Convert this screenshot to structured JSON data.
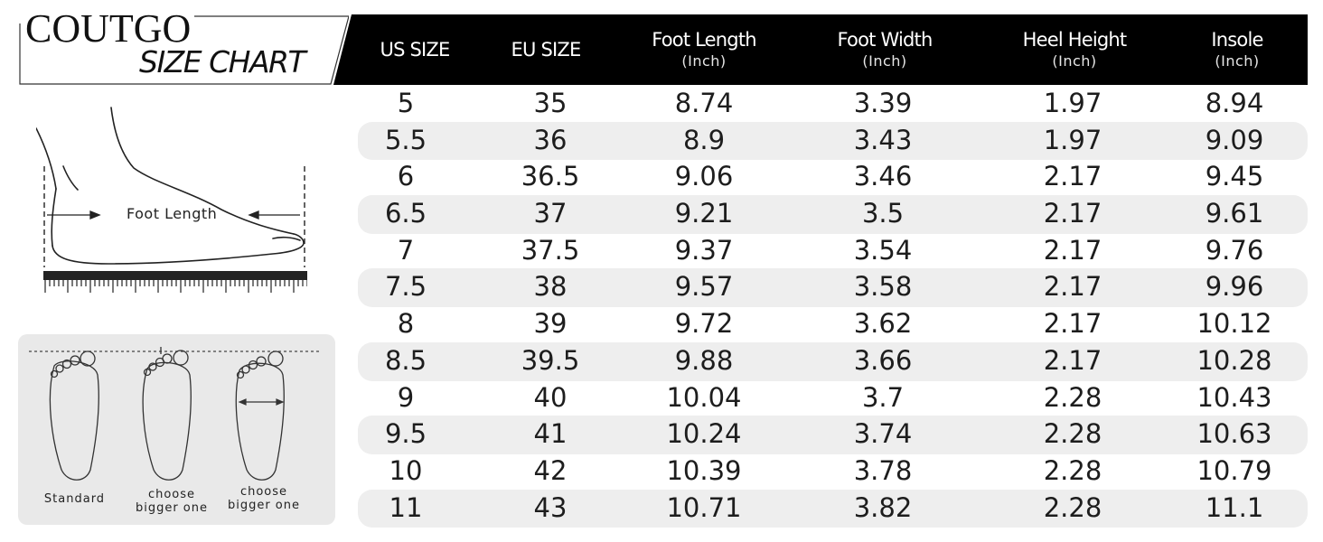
{
  "brand": {
    "name": "COUTGO",
    "subtitle": "SIZE CHART"
  },
  "columns": [
    {
      "label": "US SIZE",
      "unit": ""
    },
    {
      "label": "EU SIZE",
      "unit": ""
    },
    {
      "label": "Foot Length",
      "unit": "(Inch)"
    },
    {
      "label": "Foot Width",
      "unit": "(Inch)"
    },
    {
      "label": "Heel Height",
      "unit": "(Inch)"
    },
    {
      "label": "Insole",
      "unit": "(Inch)"
    }
  ],
  "rows": [
    [
      "5",
      "35",
      "8.74",
      "3.39",
      "1.97",
      "8.94"
    ],
    [
      "5.5",
      "36",
      "8.9",
      "3.43",
      "1.97",
      "9.09"
    ],
    [
      "6",
      "36.5",
      "9.06",
      "3.46",
      "2.17",
      "9.45"
    ],
    [
      "6.5",
      "37",
      "9.21",
      "3.5",
      "2.17",
      "9.61"
    ],
    [
      "7",
      "37.5",
      "9.37",
      "3.54",
      "2.17",
      "9.76"
    ],
    [
      "7.5",
      "38",
      "9.57",
      "3.58",
      "2.17",
      "9.96"
    ],
    [
      "8",
      "39",
      "9.72",
      "3.62",
      "2.17",
      "10.12"
    ],
    [
      "8.5",
      "39.5",
      "9.88",
      "3.66",
      "2.17",
      "10.28"
    ],
    [
      "9",
      "40",
      "10.04",
      "3.7",
      "2.28",
      "10.43"
    ],
    [
      "9.5",
      "41",
      "10.24",
      "3.74",
      "2.28",
      "10.63"
    ],
    [
      "10",
      "42",
      "10.39",
      "3.78",
      "2.28",
      "10.79"
    ],
    [
      "11",
      "43",
      "10.71",
      "3.82",
      "2.28",
      "11.1"
    ]
  ],
  "foot_diagram": {
    "label": "Foot Length"
  },
  "guide": {
    "captions": [
      {
        "line1": "Standard",
        "line2": ""
      },
      {
        "line1": "choose",
        "line2": "bigger one"
      },
      {
        "line1": "choose",
        "line2": "bigger one"
      }
    ]
  },
  "colors": {
    "header_bg": "#000000",
    "row_shade": "#eeeeee",
    "guide_bg": "#e9e9e9"
  }
}
